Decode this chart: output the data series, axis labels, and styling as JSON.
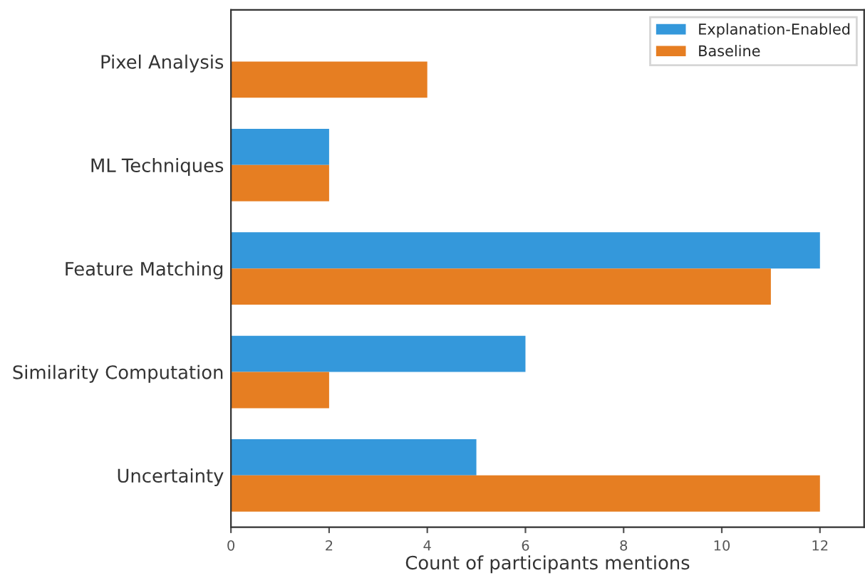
{
  "chart_data": {
    "type": "bar",
    "orientation": "horizontal",
    "xlabel": "Count of participants mentions",
    "categories": [
      "Pixel Analysis",
      "ML Techniques",
      "Feature Matching",
      "Similarity Computation",
      "Uncertainty"
    ],
    "series": [
      {
        "name": "Explanation-Enabled",
        "color": "#3498db",
        "values": [
          null,
          2,
          12,
          6,
          5
        ]
      },
      {
        "name": "Baseline",
        "color": "#e67e22",
        "values": [
          4,
          2,
          11,
          2,
          12
        ]
      }
    ],
    "xlim": [
      0,
      12.9
    ],
    "xticks": [
      0,
      2,
      4,
      6,
      8,
      10,
      12
    ],
    "legend": "top right",
    "grid": false
  }
}
